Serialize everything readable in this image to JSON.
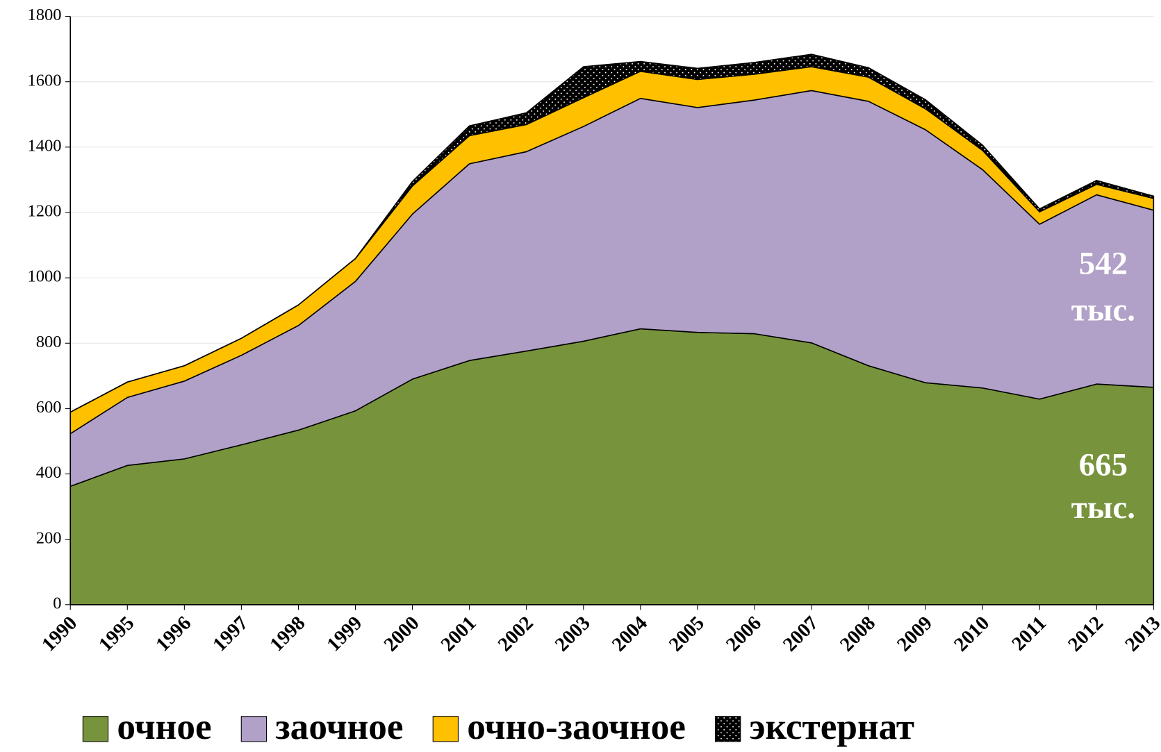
{
  "chart_data": {
    "type": "area",
    "stacked": true,
    "categories": [
      "1990",
      "1995",
      "1996",
      "1997",
      "1998",
      "1999",
      "2000",
      "2001",
      "2002",
      "2003",
      "2004",
      "2005",
      "2006",
      "2007",
      "2008",
      "2009",
      "2010",
      "2011",
      "2012",
      "2013"
    ],
    "series": [
      {
        "name": "очное",
        "color": "#77933c",
        "values": [
          362,
          426,
          446,
          489,
          534,
          593,
          690,
          747,
          776,
          806,
          844,
          833,
          829,
          801,
          731,
          679,
          663,
          629,
          675,
          665
        ]
      },
      {
        "name": "заочное",
        "color": "#b1a0c7",
        "values": [
          161,
          208,
          238,
          274,
          320,
          396,
          505,
          602,
          610,
          657,
          705,
          688,
          715,
          772,
          809,
          774,
          668,
          535,
          579,
          542
        ]
      },
      {
        "name": "очно-заочное",
        "color": "#ffc000",
        "values": [
          66,
          47,
          47,
          52,
          63,
          70,
          86,
          86,
          83,
          88,
          83,
          86,
          79,
          73,
          74,
          64,
          59,
          38,
          32,
          36
        ]
      },
      {
        "name": "экстернат",
        "color": "#000000",
        "pattern": "dots",
        "values": [
          0,
          0,
          0,
          0,
          0,
          0,
          14,
          30,
          36,
          95,
          30,
          34,
          36,
          38,
          29,
          28,
          16,
          9,
          12,
          7
        ]
      }
    ],
    "annotations": [
      [
        "542",
        "тыс."
      ],
      [
        "665",
        "тыс."
      ]
    ],
    "ylim": [
      0,
      1800
    ],
    "yticks": [
      0,
      200,
      400,
      600,
      800,
      1000,
      1200,
      1400,
      1600,
      1800
    ],
    "grid": true,
    "legend": "bottom"
  }
}
